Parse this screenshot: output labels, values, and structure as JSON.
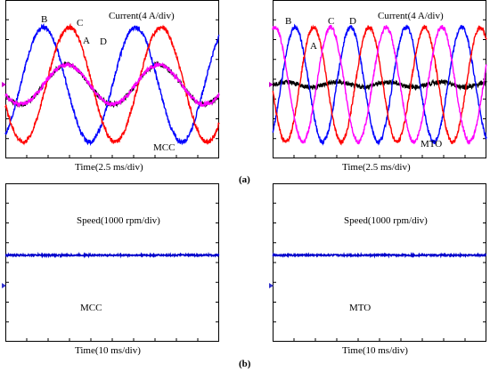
{
  "figure": {
    "caption_a": "(a)",
    "caption_b": "(b)"
  },
  "chart_data": [
    {
      "type": "line",
      "panel": "a-left",
      "annotation": "Current(4 A/div)",
      "method_label": "MCC",
      "xlabel": "Time(2.5 ms/div)",
      "x_divisions": 10,
      "y_divisions": 8,
      "series": [
        {
          "name": "A",
          "color": "#000000",
          "amplitude_div": 1.0,
          "phase_deg": 150,
          "period_div": 4.3
        },
        {
          "name": "B",
          "color": "#0000ff",
          "amplitude_div": 2.9,
          "phase_deg": 60,
          "period_div": 4.3
        },
        {
          "name": "C",
          "color": "#ff0000",
          "amplitude_div": 2.9,
          "phase_deg": 160,
          "period_div": 4.3
        },
        {
          "name": "D",
          "color": "#ff00ff",
          "amplitude_div": 1.0,
          "phase_deg": 150,
          "period_div": 4.3
        }
      ],
      "curve_labels": [
        "B",
        "C",
        "A",
        "D"
      ]
    },
    {
      "type": "line",
      "panel": "a-right",
      "annotation": "Current(4 A/div)",
      "method_label": "MTO",
      "xlabel": "Time(2.5 ms/div)",
      "x_divisions": 10,
      "y_divisions": 8,
      "series": [
        {
          "name": "A",
          "color": "#000000",
          "amplitude_div": 0.12,
          "phase_deg": 0,
          "period_div": 2.4
        },
        {
          "name": "B",
          "color": "#0000ff",
          "amplitude_div": 2.9,
          "phase_deg": 55,
          "period_div": 2.6
        },
        {
          "name": "C",
          "color": "#ff0000",
          "amplitude_div": 2.9,
          "phase_deg": 175,
          "period_div": 2.6
        },
        {
          "name": "D",
          "color": "#ff00ff",
          "amplitude_div": 2.9,
          "phase_deg": 285,
          "period_div": 2.6
        }
      ],
      "curve_labels": [
        "B",
        "C",
        "D",
        "A"
      ]
    },
    {
      "type": "line",
      "panel": "b-left",
      "annotation": "Speed(1000 rpm/div)",
      "method_label": "MCC",
      "xlabel": "Time(10 ms/div)",
      "x_divisions": 10,
      "y_divisions": 8,
      "series": [
        {
          "name": "Speed",
          "color": "#0000cc",
          "level_div_above_center": 1.0
        }
      ]
    },
    {
      "type": "line",
      "panel": "b-right",
      "annotation": "Speed(1000 rpm/div)",
      "method_label": "MTO",
      "xlabel": "Time(10 ms/div)",
      "x_divisions": 10,
      "y_divisions": 8,
      "series": [
        {
          "name": "Speed",
          "color": "#0000cc",
          "level_div_above_center": 1.0
        }
      ]
    }
  ]
}
